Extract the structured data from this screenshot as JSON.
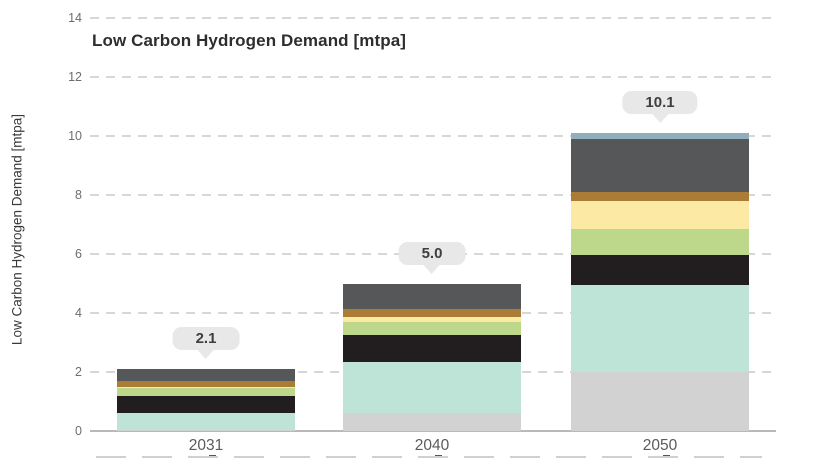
{
  "chart_data": {
    "type": "bar",
    "stacked": true,
    "title": "Low Carbon Hydrogen Demand [mtpa]",
    "ylabel": "Low Carbon Hydrogen Demand [mtpa]",
    "xlabel": "",
    "categories": [
      "2031",
      "2040",
      "2050"
    ],
    "total_labels": [
      "2.1",
      "5.0",
      "10.1"
    ],
    "totals": [
      2.1,
      5.0,
      10.1
    ],
    "ylim": [
      0,
      14
    ],
    "yticks": [
      0,
      2,
      4,
      6,
      8,
      10,
      12,
      14
    ],
    "grid": "horizontal-dashed",
    "legend": "none",
    "series": [
      {
        "name": "light-gray-segment",
        "color": "#d2d2d3",
        "values": [
          0.05,
          0.6,
          2.0
        ]
      },
      {
        "name": "teal-segment",
        "color": "#bee3d7",
        "values": [
          0.55,
          1.75,
          2.95
        ]
      },
      {
        "name": "black-segment",
        "color": "#221e1f",
        "values": [
          0.6,
          0.9,
          1.0
        ]
      },
      {
        "name": "green-segment",
        "color": "#bed88b",
        "values": [
          0.25,
          0.45,
          0.9
        ]
      },
      {
        "name": "pale-yellow-segment",
        "color": "#fbe9a4",
        "values": [
          0.05,
          0.15,
          0.95
        ]
      },
      {
        "name": "brown-segment",
        "color": "#aa7c35",
        "values": [
          0.2,
          0.3,
          0.3
        ]
      },
      {
        "name": "dark-gray-segment",
        "color": "#565759",
        "values": [
          0.4,
          0.85,
          1.8
        ]
      },
      {
        "name": "steel-blue-segment",
        "color": "#92aebd",
        "values": [
          0.0,
          0.0,
          0.2
        ]
      }
    ],
    "colors": {
      "gridline": "#d7d7d7",
      "baseline": "#b9b9b9",
      "callout_bg": "#e8e8e8",
      "callout_text": "#3e3e40",
      "title_text": "#2e2e30",
      "tick_text": "#6e6e6e",
      "category_text": "#5b5b5d"
    }
  }
}
